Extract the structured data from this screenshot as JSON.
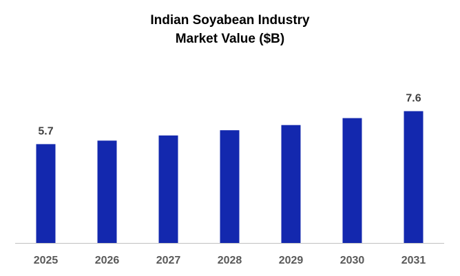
{
  "chart_data": {
    "type": "bar",
    "title_line1": "Indian Soyabean Industry",
    "title_line2": "Market Value ($B)",
    "categories": [
      "2025",
      "2026",
      "2027",
      "2028",
      "2029",
      "2030",
      "2031"
    ],
    "values": [
      5.7,
      5.9,
      6.2,
      6.5,
      6.8,
      7.2,
      7.6
    ],
    "data_labels": [
      {
        "index": 0,
        "text": "5.7"
      },
      {
        "index": 6,
        "text": "7.6"
      }
    ],
    "xlabel": "",
    "ylabel": "",
    "grid": false,
    "legend": "none",
    "bar_color": "#1328AE",
    "axis_color": "#BFBFBF"
  }
}
